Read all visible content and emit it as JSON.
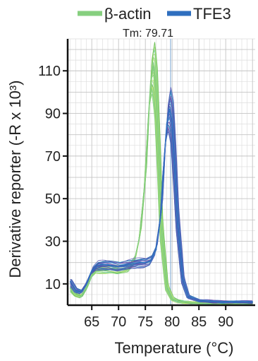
{
  "chart_data": {
    "type": "line",
    "title": "",
    "xlabel": "Temperature (°C)",
    "ylabel": "Derivative reporter (-R x 10³)",
    "xlim": [
      60.5,
      95.5
    ],
    "ylim": [
      0,
      125
    ],
    "xticks": [
      65,
      70,
      75,
      80,
      85,
      90
    ],
    "yticks": [
      10,
      30,
      50,
      70,
      90,
      110
    ],
    "grid": true,
    "legend_position": "top",
    "annotation": {
      "text": "Tm: 79.71",
      "x": 79.71
    },
    "series": [
      {
        "name": "β-actin",
        "color": "#86cf7f",
        "replicate_palette": [
          "#7ccf6a",
          "#a6d96a",
          "#66c2a5",
          "#9be27a",
          "#c2e45a",
          "#5fb85a",
          "#8fd19e",
          "#b5e27a"
        ],
        "x": [
          61,
          62,
          63,
          64,
          65,
          66,
          67,
          68,
          69,
          70,
          71,
          72,
          73,
          74,
          75,
          75.5,
          76,
          76.5,
          77,
          77.5,
          78,
          79,
          80,
          81,
          82,
          85,
          90,
          95
        ],
        "values": [
          8,
          5,
          4,
          8,
          14,
          17,
          17,
          17,
          17,
          16.5,
          17,
          17.5,
          21,
          33,
          60,
          85,
          105,
          112,
          100,
          70,
          35,
          8,
          3,
          2,
          1.5,
          1,
          1,
          1
        ]
      },
      {
        "name": "TFE3",
        "color": "#2f6fbf",
        "replicate_palette": [
          "#2b5fb8",
          "#4a4fb0",
          "#6a3f9f",
          "#3f86c8",
          "#1f78b4",
          "#5e5ab8",
          "#7b4fa6",
          "#4aa0cf"
        ],
        "x": [
          61,
          62,
          63,
          64,
          65,
          66,
          67,
          68,
          69,
          70,
          71,
          72,
          73,
          74,
          75,
          76,
          77,
          78,
          78.5,
          79,
          79.5,
          80,
          80.5,
          81,
          82,
          83,
          85,
          90,
          95
        ],
        "values": [
          11,
          7,
          6,
          10,
          16,
          18.5,
          19,
          19,
          18.5,
          18,
          18.5,
          19,
          19.5,
          20,
          20,
          21,
          26,
          45,
          68,
          85,
          92,
          86,
          65,
          40,
          12,
          4,
          2,
          1.5,
          1.5
        ]
      }
    ]
  }
}
